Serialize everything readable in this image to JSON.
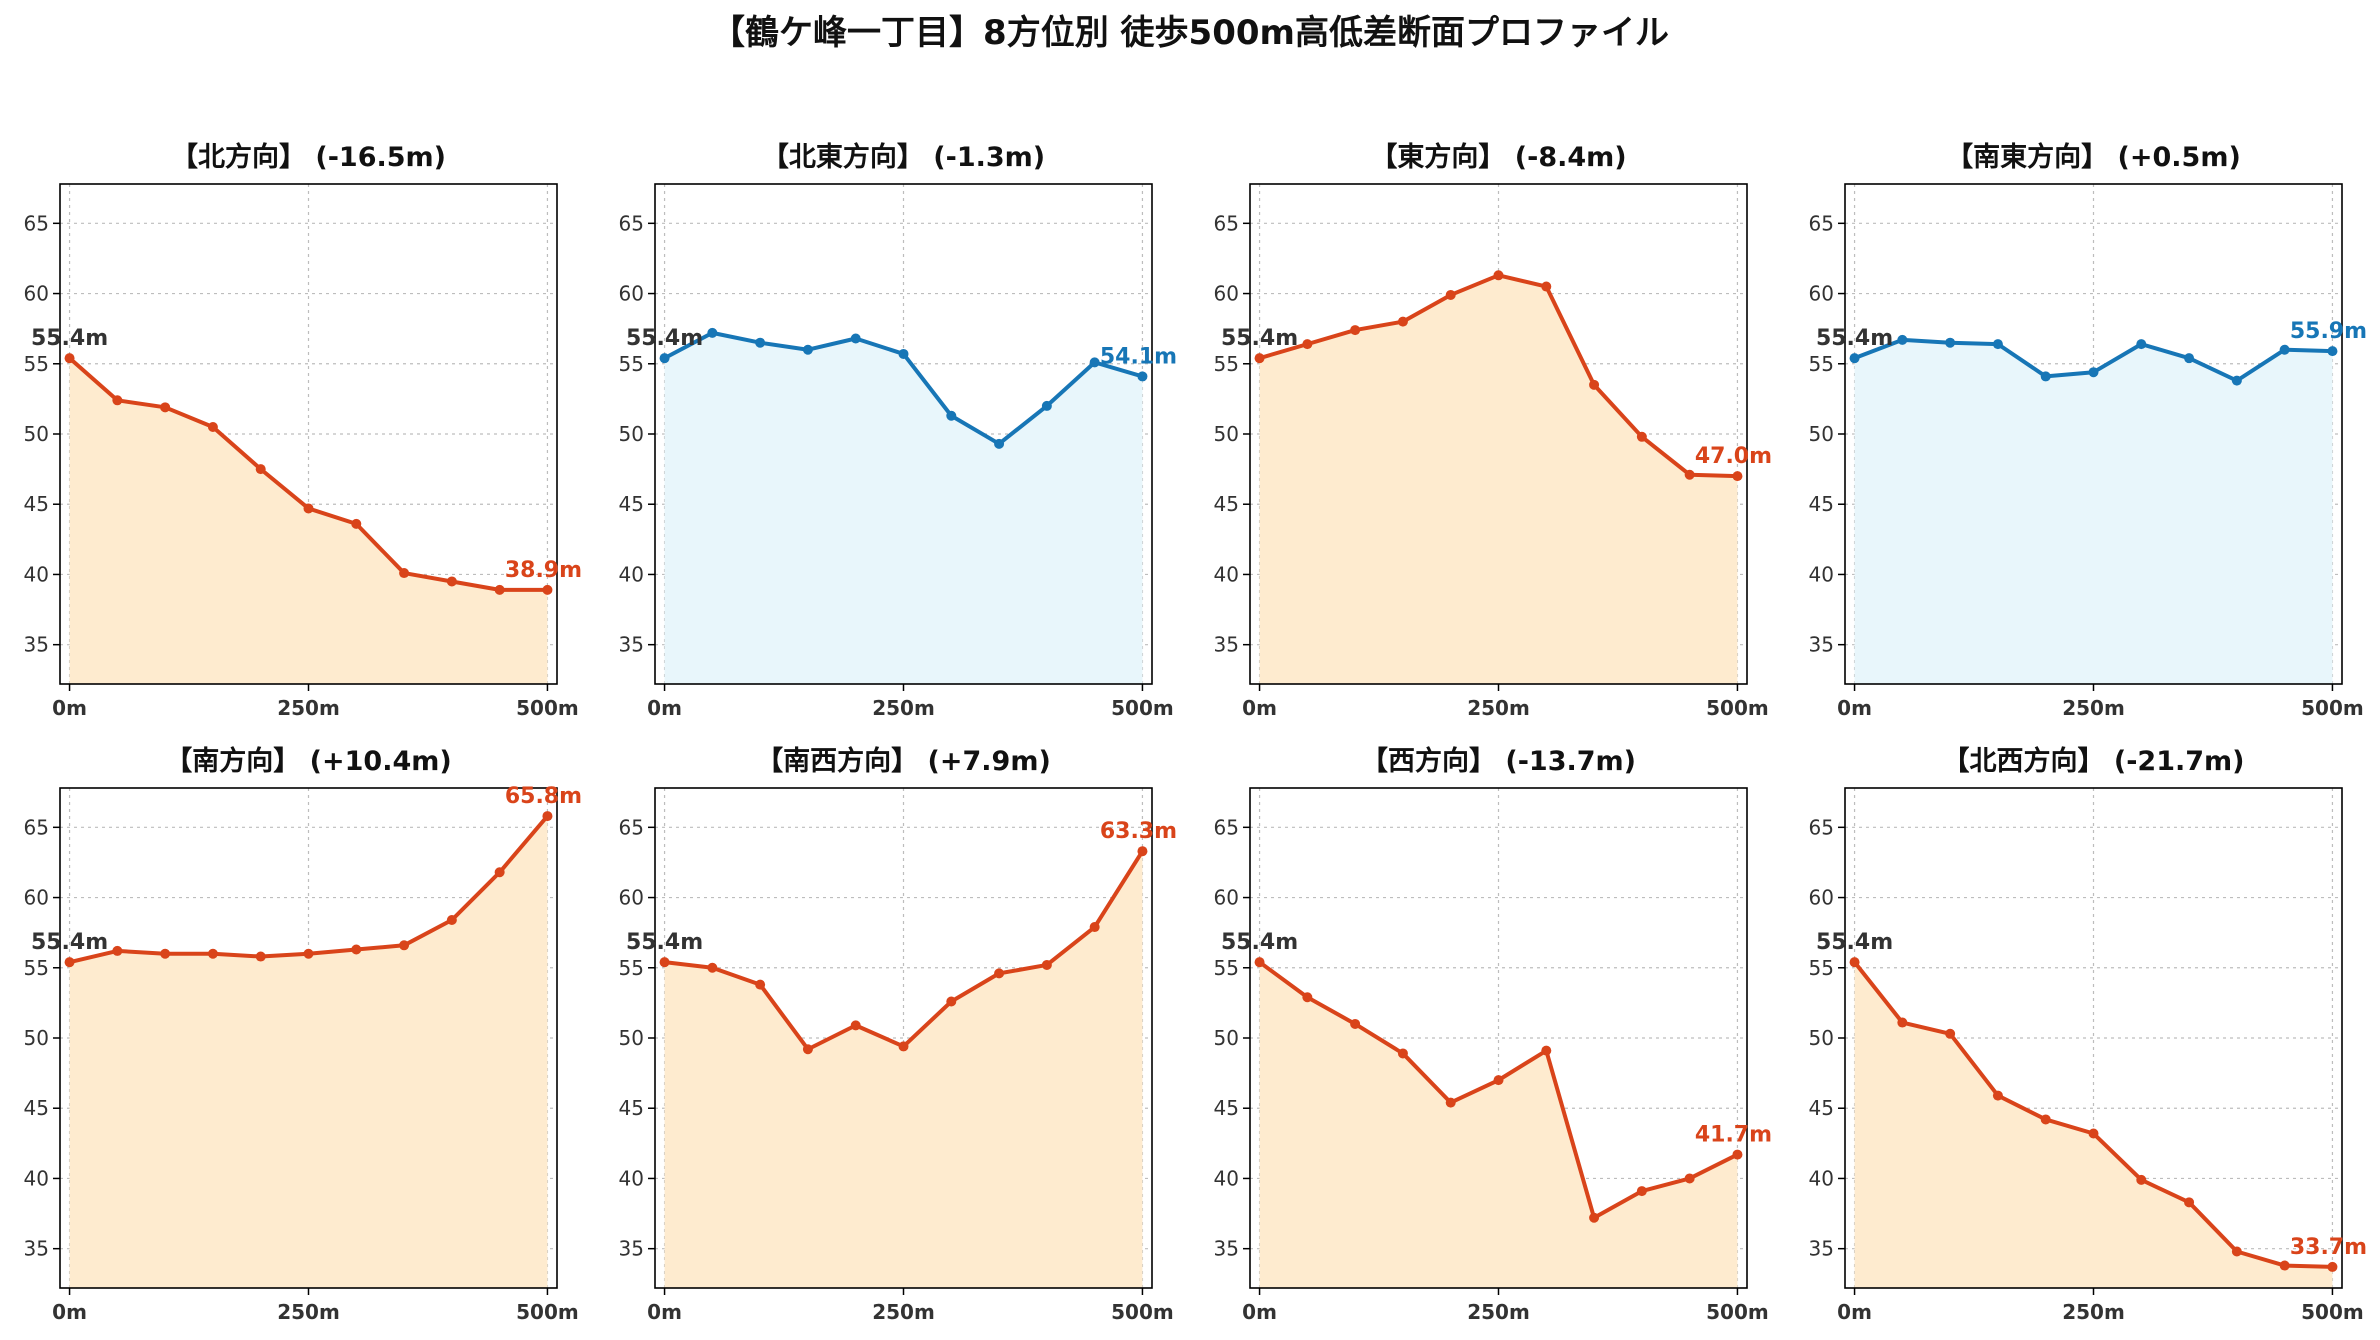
{
  "figure": {
    "title": "【鶴ケ峰一丁目】8方位別 徒歩500m高低差断面プロファイル"
  },
  "colors": {
    "descent_line": "#d9441a",
    "descent_fill": "#feebcf",
    "flat_line": "#1776b6",
    "flat_fill": "#e8f6fb"
  },
  "chart_data": [
    {
      "type": "area",
      "title": "【北方向】 (-16.5m)",
      "style": "orange",
      "x": [
        0,
        50,
        100,
        150,
        200,
        250,
        300,
        350,
        400,
        450,
        500
      ],
      "values": [
        55.4,
        52.4,
        51.9,
        50.5,
        47.5,
        44.7,
        43.6,
        40.1,
        39.5,
        38.9,
        38.9
      ],
      "start_label": "55.4m",
      "end_label": "38.9m",
      "xticks": [
        "0m",
        "250m",
        "500m"
      ],
      "xtick_values": [
        0,
        250,
        500
      ],
      "yticks": [
        35,
        40,
        45,
        50,
        55,
        60,
        65
      ],
      "ylim": [
        32.2,
        67.8
      ],
      "xlim": [
        -10,
        510
      ],
      "grid": true
    },
    {
      "type": "area",
      "title": "【北東方向】 (-1.3m)",
      "style": "blue",
      "x": [
        0,
        50,
        100,
        150,
        200,
        250,
        300,
        350,
        400,
        450,
        500
      ],
      "values": [
        55.4,
        57.2,
        56.5,
        56.0,
        56.8,
        55.7,
        51.3,
        49.3,
        52.0,
        55.1,
        54.1
      ],
      "start_label": "55.4m",
      "end_label": "54.1m",
      "xticks": [
        "0m",
        "250m",
        "500m"
      ],
      "xtick_values": [
        0,
        250,
        500
      ],
      "yticks": [
        35,
        40,
        45,
        50,
        55,
        60,
        65
      ],
      "ylim": [
        32.2,
        67.8
      ],
      "xlim": [
        -10,
        510
      ],
      "grid": true
    },
    {
      "type": "area",
      "title": "【東方向】 (-8.4m)",
      "style": "orange",
      "x": [
        0,
        50,
        100,
        150,
        200,
        250,
        300,
        350,
        400,
        450,
        500
      ],
      "values": [
        55.4,
        56.4,
        57.4,
        58.0,
        59.9,
        61.3,
        60.5,
        53.5,
        49.8,
        47.1,
        47.0
      ],
      "start_label": "55.4m",
      "end_label": "47.0m",
      "xticks": [
        "0m",
        "250m",
        "500m"
      ],
      "xtick_values": [
        0,
        250,
        500
      ],
      "yticks": [
        35,
        40,
        45,
        50,
        55,
        60,
        65
      ],
      "ylim": [
        32.2,
        67.8
      ],
      "xlim": [
        -10,
        510
      ],
      "grid": true
    },
    {
      "type": "area",
      "title": "【南東方向】 (+0.5m)",
      "style": "blue",
      "x": [
        0,
        50,
        100,
        150,
        200,
        250,
        300,
        350,
        400,
        450,
        500
      ],
      "values": [
        55.4,
        56.7,
        56.5,
        56.4,
        54.1,
        54.4,
        56.4,
        55.4,
        53.8,
        56.0,
        55.9
      ],
      "start_label": "55.4m",
      "end_label": "55.9m",
      "xticks": [
        "0m",
        "250m",
        "500m"
      ],
      "xtick_values": [
        0,
        250,
        500
      ],
      "yticks": [
        35,
        40,
        45,
        50,
        55,
        60,
        65
      ],
      "ylim": [
        32.2,
        67.8
      ],
      "xlim": [
        -10,
        510
      ],
      "grid": true
    },
    {
      "type": "area",
      "title": "【南方向】 (+10.4m)",
      "style": "orange",
      "x": [
        0,
        50,
        100,
        150,
        200,
        250,
        300,
        350,
        400,
        450,
        500
      ],
      "values": [
        55.4,
        56.2,
        56.0,
        56.0,
        55.8,
        56.0,
        56.3,
        56.6,
        58.4,
        61.8,
        65.8
      ],
      "start_label": "55.4m",
      "end_label": "65.8m",
      "xticks": [
        "0m",
        "250m",
        "500m"
      ],
      "xtick_values": [
        0,
        250,
        500
      ],
      "yticks": [
        35,
        40,
        45,
        50,
        55,
        60,
        65
      ],
      "ylim": [
        32.2,
        67.8
      ],
      "xlim": [
        -10,
        510
      ],
      "grid": true
    },
    {
      "type": "area",
      "title": "【南西方向】 (+7.9m)",
      "style": "orange",
      "x": [
        0,
        50,
        100,
        150,
        200,
        250,
        300,
        350,
        400,
        450,
        500
      ],
      "values": [
        55.4,
        55.0,
        53.8,
        49.2,
        50.9,
        49.4,
        52.6,
        54.6,
        55.2,
        57.9,
        63.3
      ],
      "start_label": "55.4m",
      "end_label": "63.3m",
      "xticks": [
        "0m",
        "250m",
        "500m"
      ],
      "xtick_values": [
        0,
        250,
        500
      ],
      "yticks": [
        35,
        40,
        45,
        50,
        55,
        60,
        65
      ],
      "ylim": [
        32.2,
        67.8
      ],
      "xlim": [
        -10,
        510
      ],
      "grid": true
    },
    {
      "type": "area",
      "title": "【西方向】 (-13.7m)",
      "style": "orange",
      "x": [
        0,
        50,
        100,
        150,
        200,
        250,
        300,
        350,
        400,
        450,
        500
      ],
      "values": [
        55.4,
        52.9,
        51.0,
        48.9,
        45.4,
        47.0,
        49.1,
        37.2,
        39.1,
        40.0,
        41.7
      ],
      "start_label": "55.4m",
      "end_label": "41.7m",
      "xticks": [
        "0m",
        "250m",
        "500m"
      ],
      "xtick_values": [
        0,
        250,
        500
      ],
      "yticks": [
        35,
        40,
        45,
        50,
        55,
        60,
        65
      ],
      "ylim": [
        32.2,
        67.8
      ],
      "xlim": [
        -10,
        510
      ],
      "grid": true
    },
    {
      "type": "area",
      "title": "【北西方向】 (-21.7m)",
      "style": "orange",
      "x": [
        0,
        50,
        100,
        150,
        200,
        250,
        300,
        350,
        400,
        450,
        500
      ],
      "values": [
        55.4,
        51.1,
        50.3,
        45.9,
        44.2,
        43.2,
        39.9,
        38.3,
        34.8,
        33.8,
        33.7
      ],
      "start_label": "55.4m",
      "end_label": "33.7m",
      "xticks": [
        "0m",
        "250m",
        "500m"
      ],
      "xtick_values": [
        0,
        250,
        500
      ],
      "yticks": [
        35,
        40,
        45,
        50,
        55,
        60,
        65
      ],
      "ylim": [
        32.2,
        67.8
      ],
      "xlim": [
        -10,
        510
      ],
      "grid": true
    }
  ]
}
